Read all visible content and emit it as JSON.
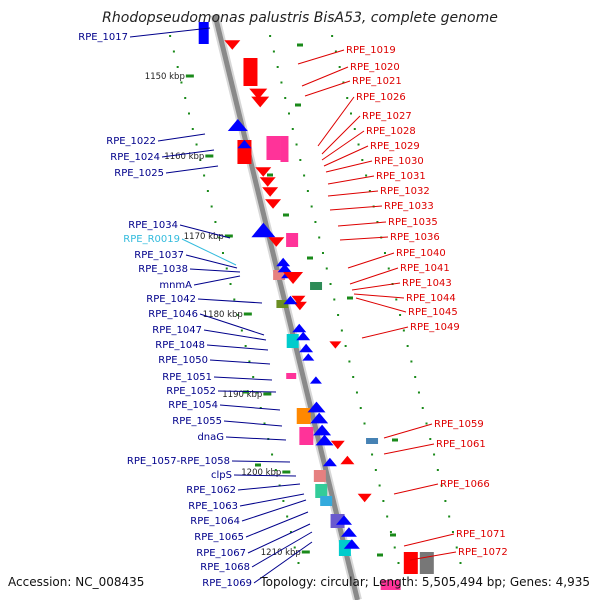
{
  "title": "Rhodopseudomonas palustris BisA53, complete genome",
  "footer": {
    "accession": "Accession: NC_008435",
    "summary": "Topology: circular; Length: 5,505,494 bp; Genes: 4,935"
  },
  "colors": {
    "backbone": "#8a8a8a",
    "left_label": "#00008b",
    "left_label_rna": "#33bbdd",
    "right_label": "#dd0000",
    "tick": "#1a8a1a",
    "forward_gene": "#ff0000",
    "reverse_gene": "#0000ff"
  },
  "kbp_labels": [
    "1150 kbp",
    "1160 kbp",
    "1170 kbp",
    "1180 kbp",
    "1190 kbp",
    "1200 kbp",
    "1210 kbp"
  ],
  "left_labels": [
    "RPE_1017",
    "RPE_1022",
    "RPE_1024",
    "RPE_1025",
    "RPE_1034",
    "RPE_R0019",
    "RPE_1037",
    "RPE_1038",
    "mnmA",
    "RPE_1042",
    "RPE_1046",
    "RPE_1047",
    "RPE_1048",
    "RPE_1050",
    "RPE_1051",
    "RPE_1052",
    "RPE_1054",
    "RPE_1055",
    "dnaG",
    "RPE_1057-RPE_1058",
    "clpS",
    "RPE_1062",
    "RPE_1063",
    "RPE_1064",
    "RPE_1065",
    "RPE_1067",
    "RPE_1068",
    "RPE_1069"
  ],
  "right_labels": [
    "RPE_1019",
    "RPE_1020",
    "RPE_1021",
    "RPE_1026",
    "RPE_1027",
    "RPE_1028",
    "RPE_1029",
    "RPE_1030",
    "RPE_1031",
    "RPE_1032",
    "RPE_1033",
    "RPE_1035",
    "RPE_1036",
    "RPE_1040",
    "RPE_1041",
    "RPE_1043",
    "RPE_1044",
    "RPE_1045",
    "RPE_1049",
    "RPE_1059",
    "RPE_1061",
    "RPE_1066",
    "RPE_1071",
    "RPE_1072"
  ]
}
